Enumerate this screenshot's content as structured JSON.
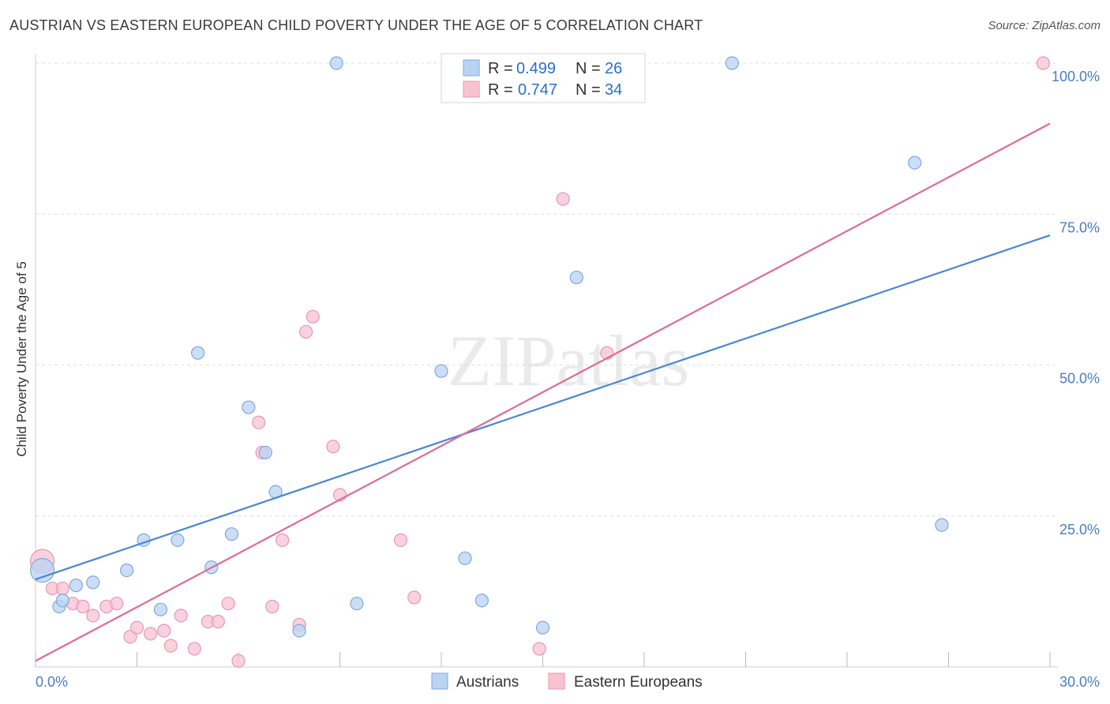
{
  "title": "AUSTRIAN VS EASTERN EUROPEAN CHILD POVERTY UNDER THE AGE OF 5 CORRELATION CHART",
  "source": "Source: ZipAtlas.com",
  "watermark": "ZIPatlas",
  "colors": {
    "austrians": "#4a86d8",
    "austrians_fill": "#b9d3f3",
    "eastern": "#e06a95",
    "eastern_fill": "#f7c3d3",
    "tick": "#4a7cc7",
    "grid": "#dddddd"
  },
  "legend": {
    "r_label": "R =",
    "n_label": "N =",
    "rows": [
      {
        "series": "Austrians",
        "r": "0.499",
        "n": "26"
      },
      {
        "series": "Eastern Europeans",
        "r": "0.747",
        "n": "34"
      }
    ]
  },
  "chart_data": {
    "type": "scatter",
    "title": "AUSTRIAN VS EASTERN EUROPEAN CHILD POVERTY UNDER THE AGE OF 5 CORRELATION CHART",
    "xlabel": "",
    "ylabel": "Child Poverty Under the Age of 5",
    "xlim": [
      0,
      30
    ],
    "ylim": [
      0,
      100
    ],
    "x_tick_labels": [
      "0.0%",
      "30.0%"
    ],
    "y_tick_labels": [
      "100.0%",
      "75.0%",
      "50.0%",
      "25.0%"
    ],
    "y_ticks": [
      100,
      75,
      50,
      25
    ],
    "grid": true,
    "legend_position": "bottom",
    "series": [
      {
        "name": "Austrians",
        "points": [
          [
            0.2,
            16.0
          ],
          [
            0.7,
            10.0
          ],
          [
            1.2,
            13.5
          ],
          [
            1.7,
            14.0
          ],
          [
            2.7,
            16.0
          ],
          [
            3.2,
            21.0
          ],
          [
            3.7,
            9.5
          ],
          [
            4.2,
            21.0
          ],
          [
            4.8,
            52.0
          ],
          [
            5.2,
            16.5
          ],
          [
            5.8,
            22.0
          ],
          [
            6.3,
            43.0
          ],
          [
            6.8,
            35.5
          ],
          [
            7.1,
            29.0
          ],
          [
            7.8,
            6.0
          ],
          [
            8.9,
            100.0
          ],
          [
            9.5,
            10.5
          ],
          [
            12.0,
            49.0
          ],
          [
            12.7,
            18.0
          ],
          [
            13.2,
            11.0
          ],
          [
            15.0,
            6.5
          ],
          [
            16.0,
            64.5
          ],
          [
            20.6,
            100.0
          ],
          [
            26.0,
            83.5
          ],
          [
            26.8,
            23.5
          ],
          [
            0.8,
            11.0
          ]
        ],
        "trend": {
          "x": [
            0,
            30
          ],
          "y": [
            14.5,
            71.5
          ]
        }
      },
      {
        "name": "Eastern Europeans",
        "points": [
          [
            0.2,
            17.5
          ],
          [
            0.5,
            13.0
          ],
          [
            0.8,
            13.0
          ],
          [
            1.1,
            10.5
          ],
          [
            1.4,
            10.0
          ],
          [
            1.7,
            8.5
          ],
          [
            2.1,
            10.0
          ],
          [
            2.4,
            10.5
          ],
          [
            2.8,
            5.0
          ],
          [
            3.0,
            6.5
          ],
          [
            3.4,
            5.5
          ],
          [
            3.8,
            6.0
          ],
          [
            4.0,
            3.5
          ],
          [
            4.3,
            8.5
          ],
          [
            4.7,
            3.0
          ],
          [
            5.1,
            7.5
          ],
          [
            5.4,
            7.5
          ],
          [
            5.7,
            10.5
          ],
          [
            6.0,
            1.0
          ],
          [
            6.6,
            40.5
          ],
          [
            6.7,
            35.5
          ],
          [
            7.0,
            10.0
          ],
          [
            7.3,
            21.0
          ],
          [
            7.8,
            7.0
          ],
          [
            8.0,
            55.5
          ],
          [
            8.2,
            58.0
          ],
          [
            8.8,
            36.5
          ],
          [
            9.0,
            28.5
          ],
          [
            10.8,
            21.0
          ],
          [
            11.2,
            11.5
          ],
          [
            14.9,
            3.0
          ],
          [
            15.6,
            77.5
          ],
          [
            16.9,
            52.0
          ],
          [
            29.8,
            100.0
          ]
        ],
        "trend": {
          "x": [
            0,
            30
          ],
          "y": [
            1.0,
            90.0
          ]
        }
      }
    ]
  }
}
